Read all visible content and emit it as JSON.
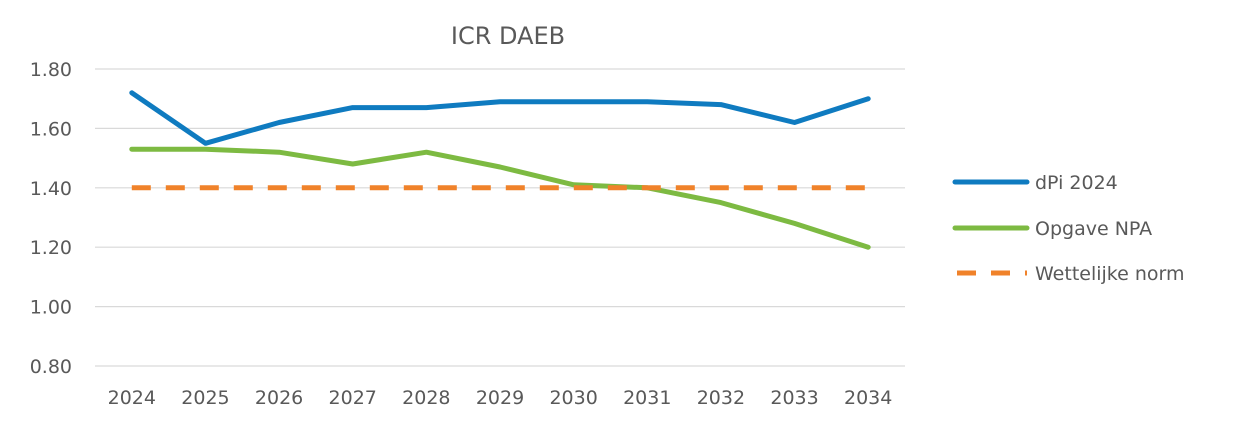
{
  "chart_data": {
    "type": "line",
    "title": "ICR DAEB",
    "xlabel": "",
    "ylabel": "",
    "categories": [
      "2024",
      "2025",
      "2026",
      "2027",
      "2028",
      "2029",
      "2030",
      "2031",
      "2032",
      "2033",
      "2034"
    ],
    "y_ticks": [
      "0.80",
      "1.00",
      "1.20",
      "1.40",
      "1.60",
      "1.80"
    ],
    "ylim": [
      0.8,
      1.8
    ],
    "grid": true,
    "legend_position": "right",
    "series": [
      {
        "name": "dPi 2024",
        "color": "#0f7bc0",
        "style": "solid",
        "values": [
          1.72,
          1.55,
          1.62,
          1.67,
          1.67,
          1.69,
          1.69,
          1.69,
          1.68,
          1.62,
          1.7
        ]
      },
      {
        "name": "Opgave NPA",
        "color": "#7dba42",
        "style": "solid",
        "values": [
          1.53,
          1.53,
          1.52,
          1.48,
          1.52,
          1.47,
          1.41,
          1.4,
          1.35,
          1.28,
          1.2
        ]
      },
      {
        "name": "Wettelijke norm",
        "color": "#f0822a",
        "style": "dashed",
        "values": [
          1.4,
          1.4,
          1.4,
          1.4,
          1.4,
          1.4,
          1.4,
          1.4,
          1.4,
          1.4,
          1.4
        ]
      }
    ]
  }
}
